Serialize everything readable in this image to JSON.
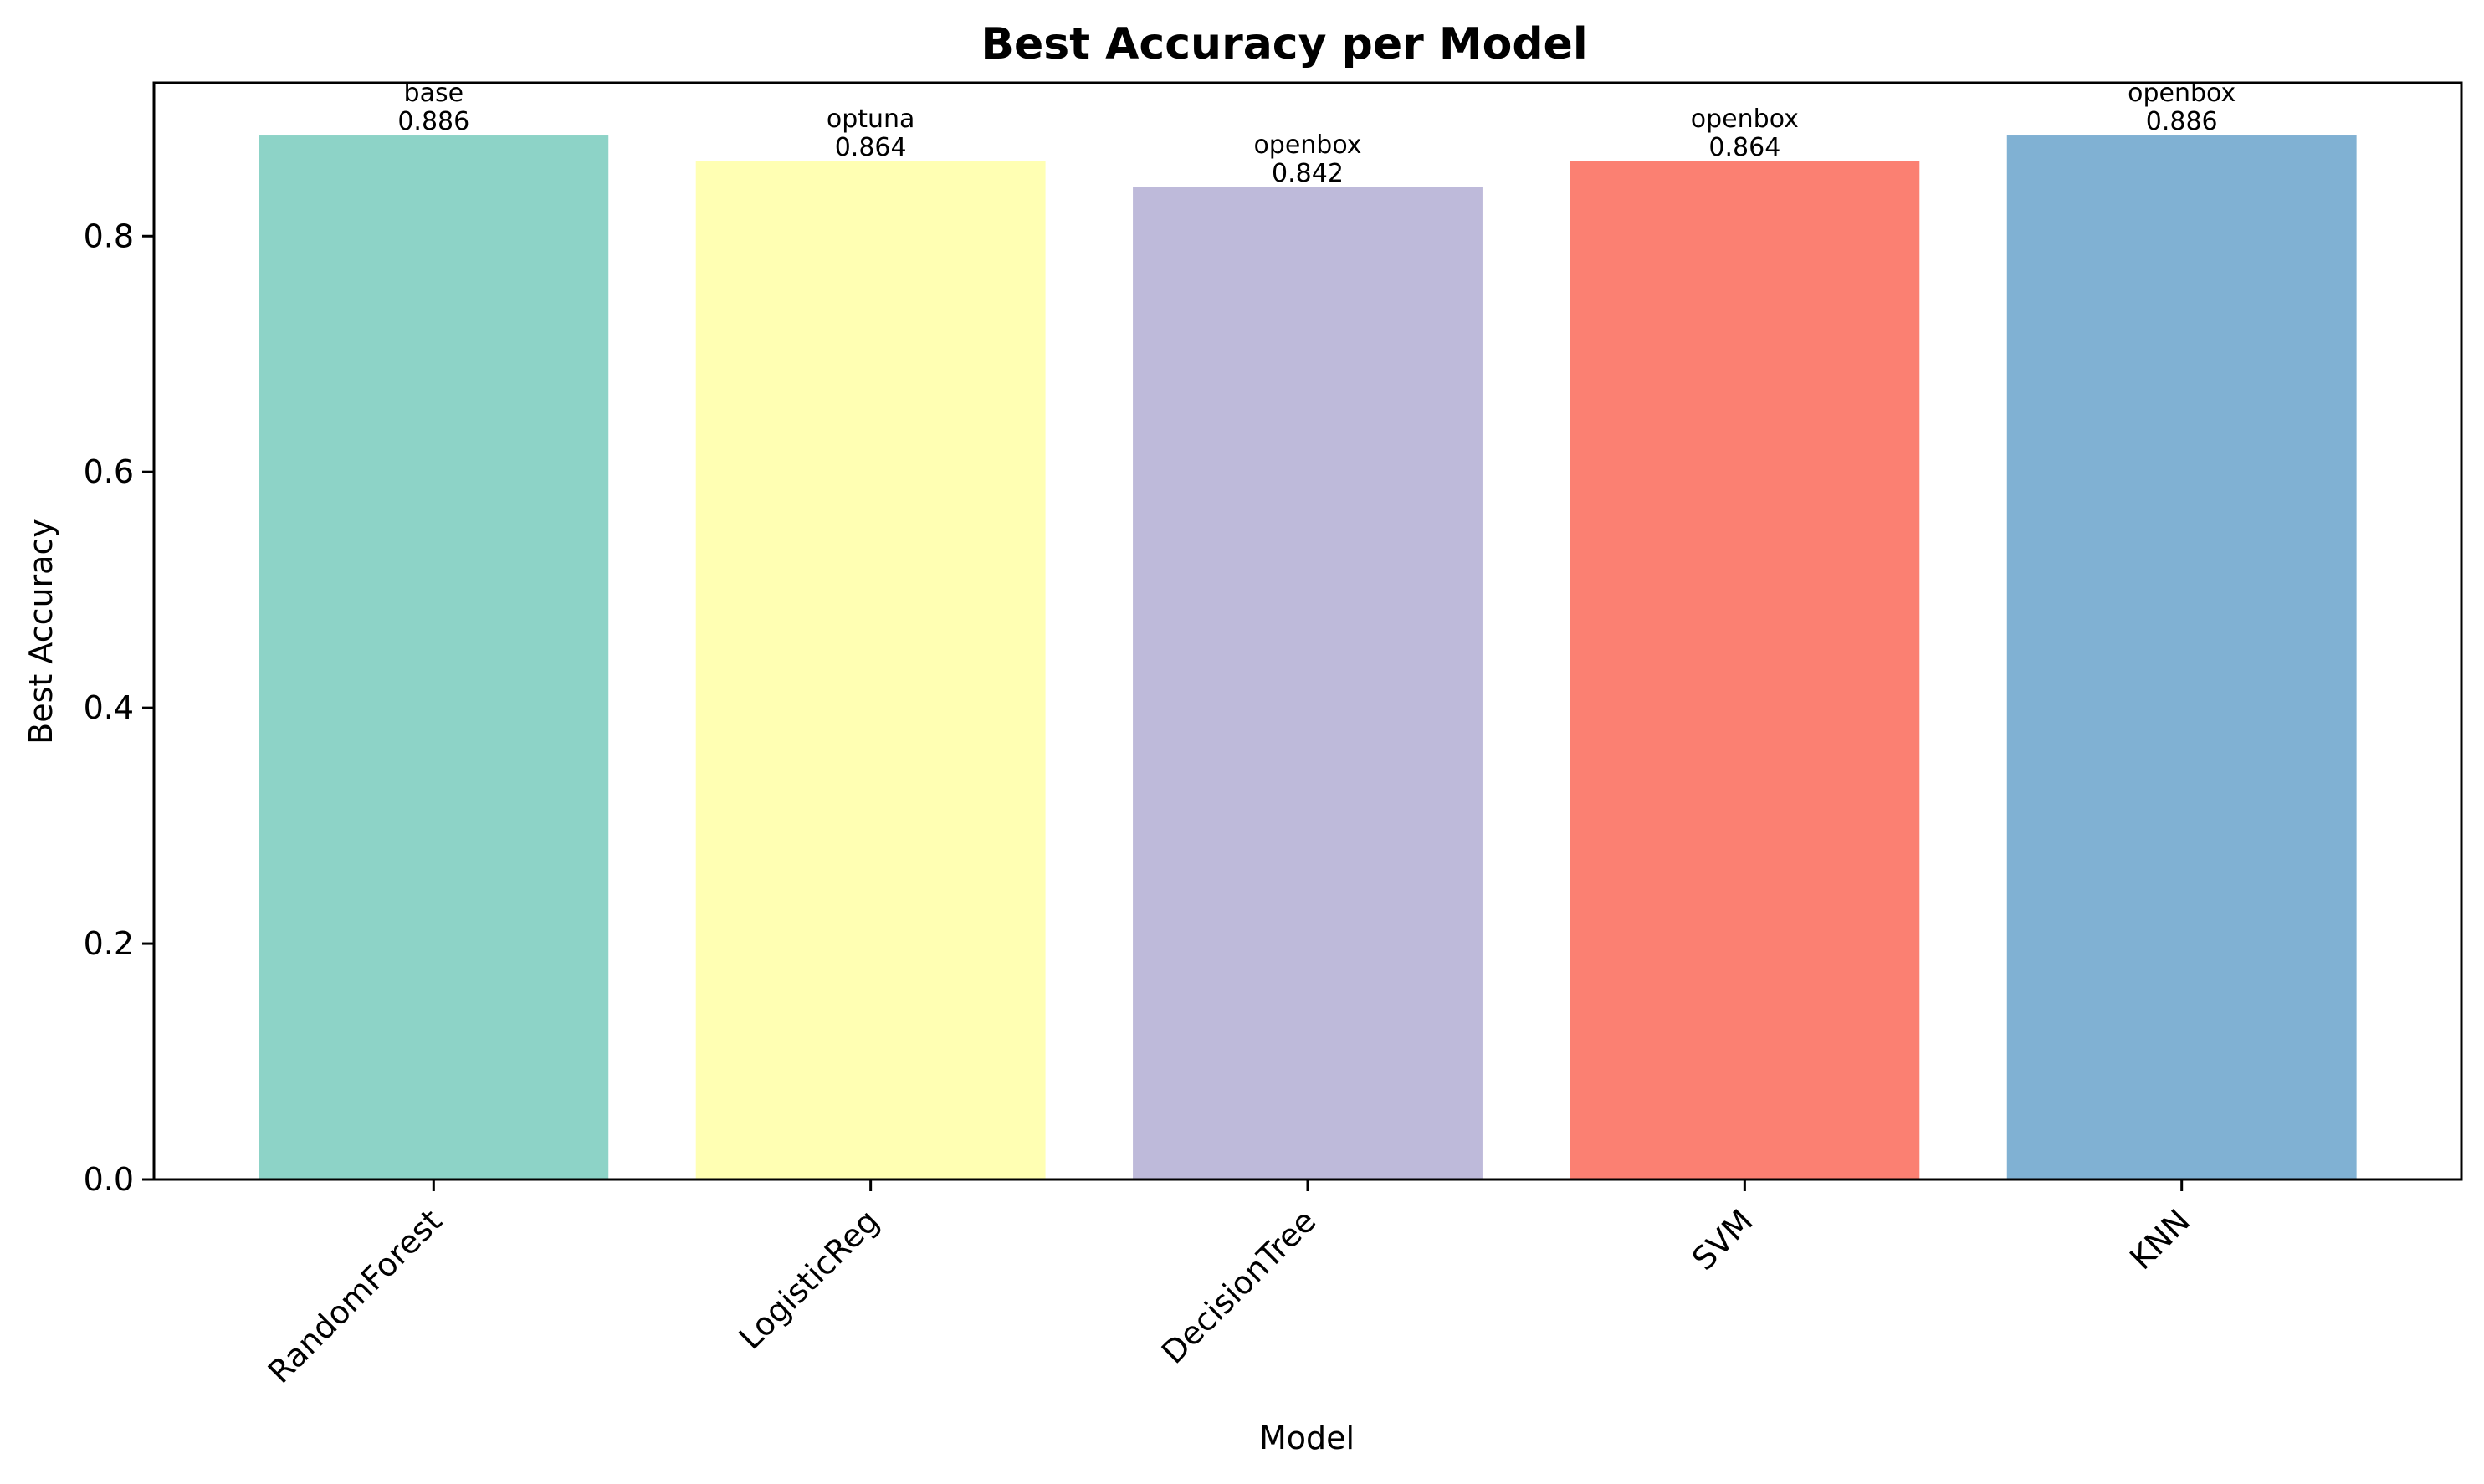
{
  "chart_data": {
    "type": "bar",
    "title": "Best Accuracy per Model",
    "xlabel": "Model",
    "ylabel": "Best Accuracy",
    "categories": [
      "RandomForest",
      "LogisticReg",
      "DecisionTree",
      "SVM",
      "KNN"
    ],
    "values": [
      0.886,
      0.864,
      0.842,
      0.864,
      0.886
    ],
    "value_labels": [
      "0.886",
      "0.864",
      "0.842",
      "0.864",
      "0.886"
    ],
    "methods": [
      "base",
      "optuna",
      "openbox",
      "openbox",
      "openbox"
    ],
    "colors": [
      "#8dd3c7",
      "#ffffb3",
      "#bebada",
      "#fb8072",
      "#80b1d3"
    ],
    "ylim": [
      0,
      0.93
    ],
    "yticks": [
      0.0,
      0.2,
      0.4,
      0.6,
      0.8
    ],
    "ytick_labels": [
      "0.0",
      "0.2",
      "0.4",
      "0.6",
      "0.8"
    ],
    "grid": false,
    "legend": "none"
  }
}
